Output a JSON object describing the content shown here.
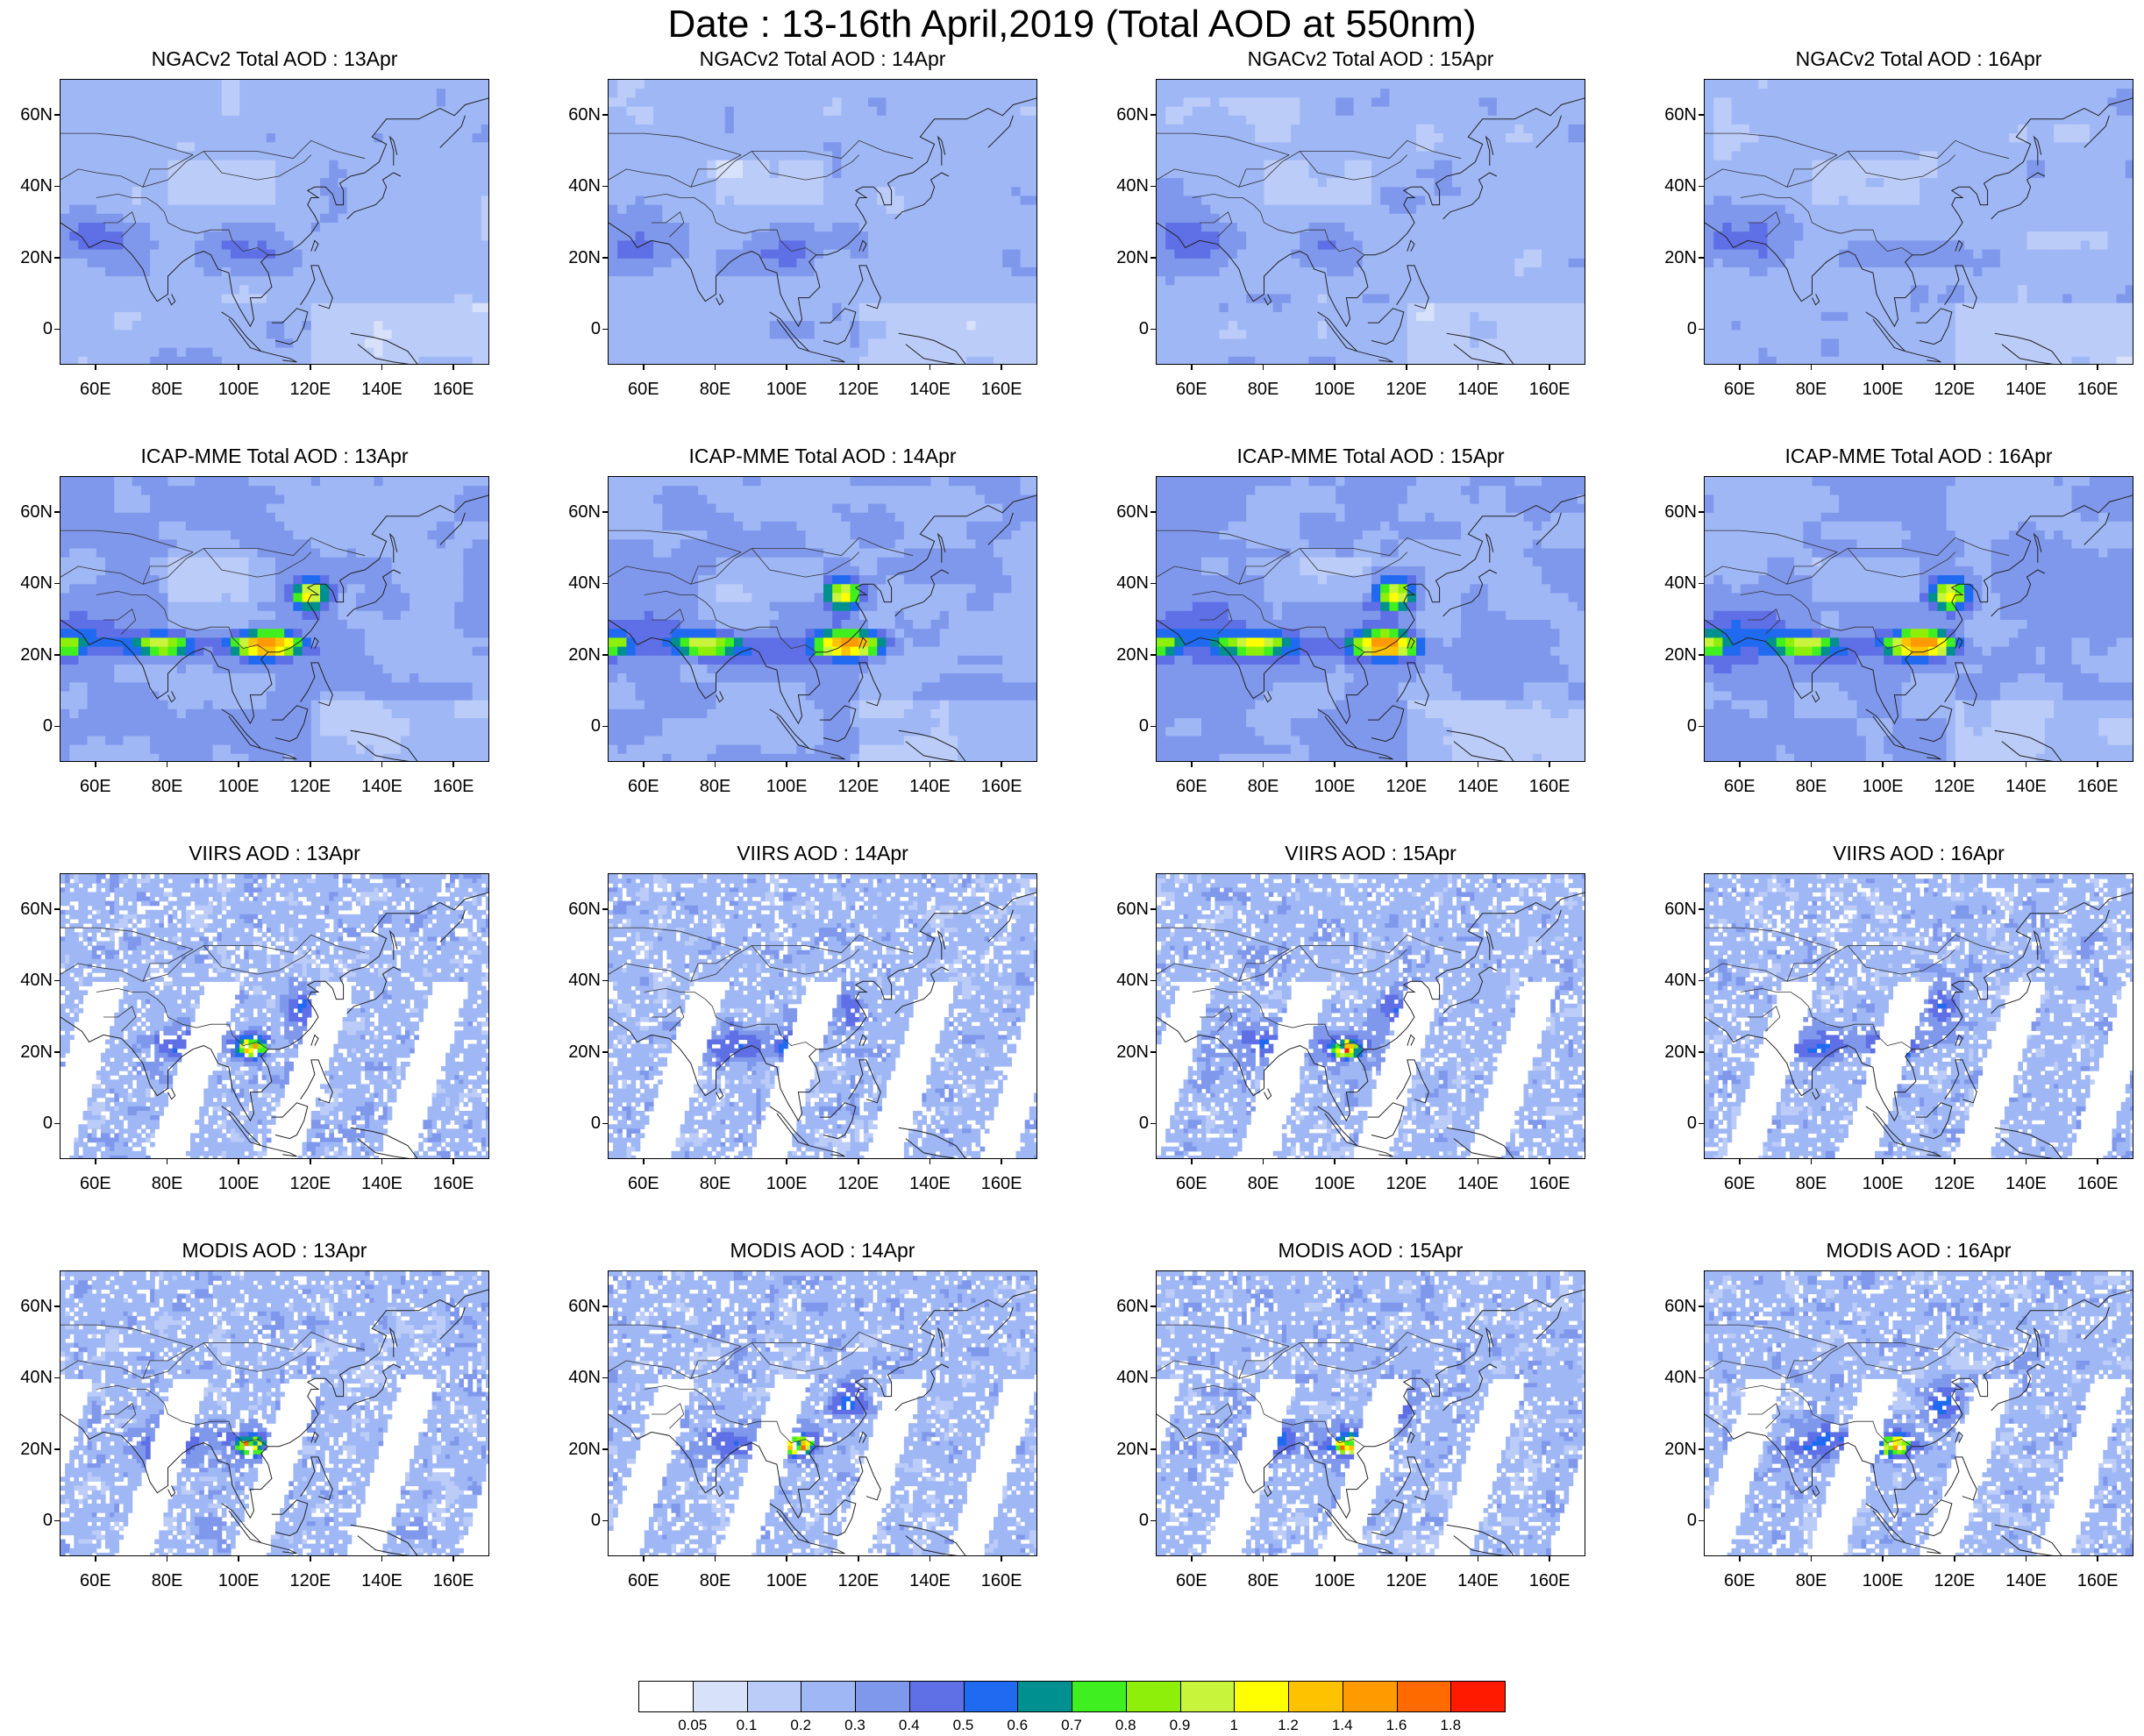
{
  "title": "Date : 13-16th April,2019 (Total AOD at 550nm)",
  "lat_labels": [
    "60N",
    "40N",
    "20N",
    "0"
  ],
  "lon_labels": [
    "60E",
    "80E",
    "100E",
    "120E",
    "140E",
    "160E"
  ],
  "rows": [
    {
      "product": "NGACv2",
      "titles": [
        "NGACv2 Total AOD : 13Apr",
        "NGACv2 Total AOD : 14Apr",
        "NGACv2 Total AOD : 15Apr",
        "NGACv2 Total AOD : 16Apr"
      ]
    },
    {
      "product": "ICAP-MME",
      "titles": [
        "ICAP-MME Total AOD : 13Apr",
        "ICAP-MME Total AOD : 14Apr",
        "ICAP-MME Total AOD : 15Apr",
        "ICAP-MME Total AOD : 16Apr"
      ]
    },
    {
      "product": "VIIRS",
      "titles": [
        "VIIRS AOD : 13Apr",
        "VIIRS AOD : 14Apr",
        "VIIRS AOD : 15Apr",
        "VIIRS AOD : 16Apr"
      ]
    },
    {
      "product": "MODIS",
      "titles": [
        "MODIS AOD : 13Apr",
        "MODIS AOD : 14Apr",
        "MODIS AOD : 15Apr",
        "MODIS AOD : 16Apr"
      ]
    }
  ],
  "colorbar": {
    "labels": [
      "0.05",
      "0.1",
      "0.2",
      "0.3",
      "0.4",
      "0.5",
      "0.6",
      "0.7",
      "0.8",
      "0.9",
      "1",
      "1.2",
      "1.4",
      "1.6",
      "1.8"
    ],
    "colors": [
      "#ffffff",
      "#d7e1fa",
      "#bcccf8",
      "#9fb7f5",
      "#7f98ec",
      "#5f6fe6",
      "#1f6af0",
      "#009090",
      "#40ef20",
      "#8ef00a",
      "#c8f53c",
      "#ffff00",
      "#ffc200",
      "#ff9a00",
      "#ff6a00",
      "#ff1a00"
    ]
  }
}
